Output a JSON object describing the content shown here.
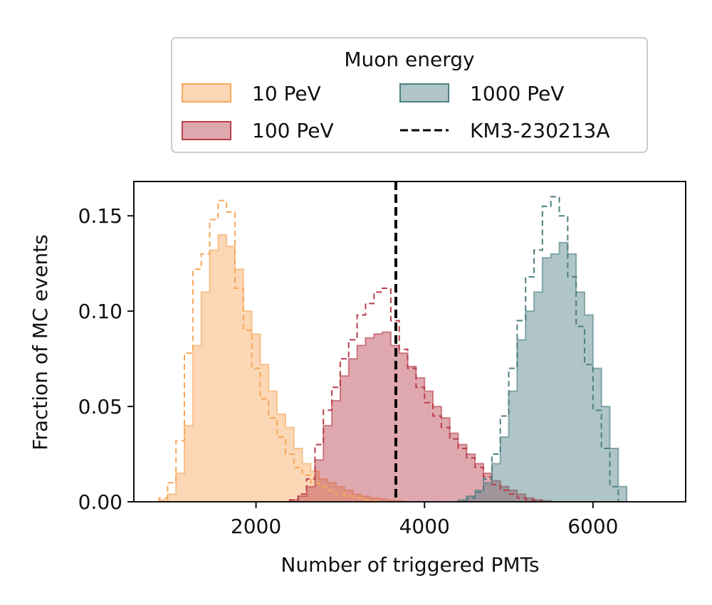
{
  "chart_data": {
    "type": "histogram",
    "xlabel": "Number of triggered PMTs",
    "ylabel": "Fraction of MC events",
    "xlim": [
      550,
      7100
    ],
    "ylim": [
      0,
      0.168
    ],
    "xticks": [
      2000,
      4000,
      6000
    ],
    "xtick_labels": [
      "2000",
      "4000",
      "6000"
    ],
    "yticks": [
      0.0,
      0.05,
      0.1,
      0.15
    ],
    "ytick_labels": [
      "0.00",
      "0.05",
      "0.10",
      "0.15"
    ],
    "grid": false,
    "legend": {
      "title": "Muon energy",
      "placement": "above plot, centered",
      "entries": [
        "10 PeV",
        "100 PeV",
        "1000 PeV",
        "KM3-230213A"
      ]
    },
    "event_line": {
      "name": "KM3-230213A",
      "x": 3660,
      "color": "#000000",
      "style": "dashed"
    },
    "series": [
      {
        "name": "10 PeV",
        "color": "#f7a75a",
        "fill_opacity": 0.45,
        "filled_hist": {
          "edges": [
            850,
            950,
            1050,
            1150,
            1250,
            1350,
            1450,
            1550,
            1650,
            1750,
            1850,
            1950,
            2050,
            2150,
            2250,
            2350,
            2450,
            2550,
            2650,
            2750,
            2850,
            2950,
            3050,
            3150,
            3250,
            3350,
            3450,
            3550,
            3650,
            3750
          ],
          "values": [
            0.001,
            0.004,
            0.015,
            0.04,
            0.082,
            0.11,
            0.132,
            0.14,
            0.134,
            0.122,
            0.1,
            0.088,
            0.072,
            0.058,
            0.046,
            0.039,
            0.028,
            0.02,
            0.016,
            0.012,
            0.01,
            0.008,
            0.006,
            0.004,
            0.003,
            0.002,
            0.0015,
            0.001,
            0.0005
          ]
        },
        "dashed_hist": {
          "edges": [
            850,
            950,
            1050,
            1150,
            1250,
            1350,
            1450,
            1550,
            1650,
            1750,
            1850,
            1950,
            2050,
            2150,
            2250,
            2350,
            2450,
            2550,
            2650,
            2750,
            2850,
            2950,
            3050,
            3150,
            3250,
            3350,
            3450
          ],
          "values": [
            0.002,
            0.01,
            0.032,
            0.078,
            0.122,
            0.13,
            0.148,
            0.158,
            0.152,
            0.112,
            0.09,
            0.07,
            0.054,
            0.044,
            0.034,
            0.025,
            0.018,
            0.014,
            0.01,
            0.008,
            0.006,
            0.004,
            0.003,
            0.002,
            0.001,
            0.0005
          ]
        }
      },
      {
        "name": "100 PeV",
        "color": "#b83f4c",
        "fill_opacity": 0.45,
        "filled_hist": {
          "edges": [
            2400,
            2500,
            2600,
            2700,
            2800,
            2900,
            3000,
            3100,
            3200,
            3300,
            3400,
            3500,
            3600,
            3700,
            3800,
            3900,
            4000,
            4100,
            4200,
            4300,
            4400,
            4500,
            4600,
            4700,
            4800,
            4900,
            5000,
            5100,
            5200,
            5300,
            5400,
            5500
          ],
          "values": [
            0.001,
            0.003,
            0.008,
            0.022,
            0.04,
            0.053,
            0.066,
            0.075,
            0.082,
            0.086,
            0.088,
            0.089,
            0.082,
            0.078,
            0.071,
            0.065,
            0.058,
            0.05,
            0.044,
            0.036,
            0.03,
            0.025,
            0.02,
            0.015,
            0.011,
            0.008,
            0.006,
            0.004,
            0.002,
            0.001,
            0.0005
          ]
        },
        "dashed_hist": {
          "edges": [
            2400,
            2500,
            2600,
            2700,
            2800,
            2900,
            3000,
            3100,
            3200,
            3300,
            3400,
            3500,
            3600,
            3700,
            3800,
            3900,
            4000,
            4100,
            4200,
            4300,
            4400,
            4500,
            4600,
            4700,
            4800,
            4900,
            5000,
            5100,
            5200,
            5300,
            5400
          ],
          "values": [
            0.001,
            0.004,
            0.012,
            0.03,
            0.048,
            0.06,
            0.075,
            0.085,
            0.098,
            0.104,
            0.11,
            0.112,
            0.095,
            0.08,
            0.07,
            0.06,
            0.052,
            0.045,
            0.039,
            0.033,
            0.028,
            0.023,
            0.018,
            0.013,
            0.009,
            0.006,
            0.004,
            0.002,
            0.001,
            0.0005
          ]
        }
      },
      {
        "name": "1000 PeV",
        "color": "#4e7f82",
        "fill_opacity": 0.45,
        "filled_hist": {
          "edges": [
            4400,
            4500,
            4600,
            4700,
            4800,
            4900,
            5000,
            5100,
            5200,
            5300,
            5400,
            5500,
            5600,
            5700,
            5800,
            5900,
            6000,
            6100,
            6200,
            6300,
            6400
          ],
          "values": [
            0.001,
            0.003,
            0.006,
            0.01,
            0.02,
            0.034,
            0.058,
            0.085,
            0.1,
            0.11,
            0.128,
            0.13,
            0.136,
            0.13,
            0.11,
            0.098,
            0.07,
            0.05,
            0.028,
            0.008
          ]
        },
        "dashed_hist": {
          "edges": [
            4500,
            4600,
            4700,
            4800,
            4900,
            5000,
            5100,
            5200,
            5300,
            5400,
            5500,
            5600,
            5700,
            5800,
            5900,
            6000,
            6100,
            6200,
            6300
          ],
          "values": [
            0.002,
            0.005,
            0.012,
            0.025,
            0.045,
            0.07,
            0.095,
            0.118,
            0.132,
            0.155,
            0.16,
            0.15,
            0.118,
            0.092,
            0.072,
            0.048,
            0.028,
            0.008
          ]
        }
      }
    ]
  }
}
